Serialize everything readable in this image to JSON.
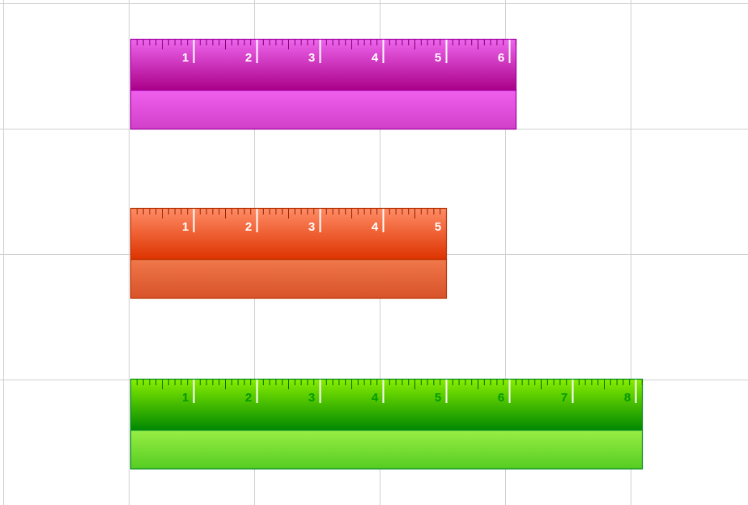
{
  "grid": {
    "color": "#d0d0d0",
    "visible": true
  },
  "rulers": [
    {
      "id": "magenta",
      "length_units": 6.1,
      "labels": [
        "1",
        "2",
        "3",
        "4",
        "5",
        "6"
      ],
      "colors": {
        "top_light": "#ee66ee",
        "top_dark": "#aa0088",
        "bottom_light": "#f060ee",
        "bottom_dark": "#d040c8",
        "border": "#a000a0",
        "tick": "#ffffff",
        "minor_tick": "#7a006a",
        "label": "#ffffff"
      }
    },
    {
      "id": "orange",
      "length_units": 5.0,
      "labels": [
        "1",
        "2",
        "3",
        "4",
        "5"
      ],
      "colors": {
        "top_light": "#ff8c66",
        "top_dark": "#dd3300",
        "bottom_light": "#f0784a",
        "bottom_dark": "#d8522a",
        "border": "#b83000",
        "tick": "#ffffff",
        "minor_tick": "#8a2200",
        "label": "#ffffff"
      }
    },
    {
      "id": "green",
      "length_units": 8.1,
      "labels": [
        "1",
        "2",
        "3",
        "4",
        "5",
        "6",
        "7",
        "8"
      ],
      "colors": {
        "top_light": "#88ee00",
        "top_dark": "#008800",
        "bottom_light": "#99ee44",
        "bottom_dark": "#55cc22",
        "border": "#008822",
        "tick": "#ffffff",
        "minor_tick": "#006600",
        "label": "#009900"
      }
    }
  ]
}
